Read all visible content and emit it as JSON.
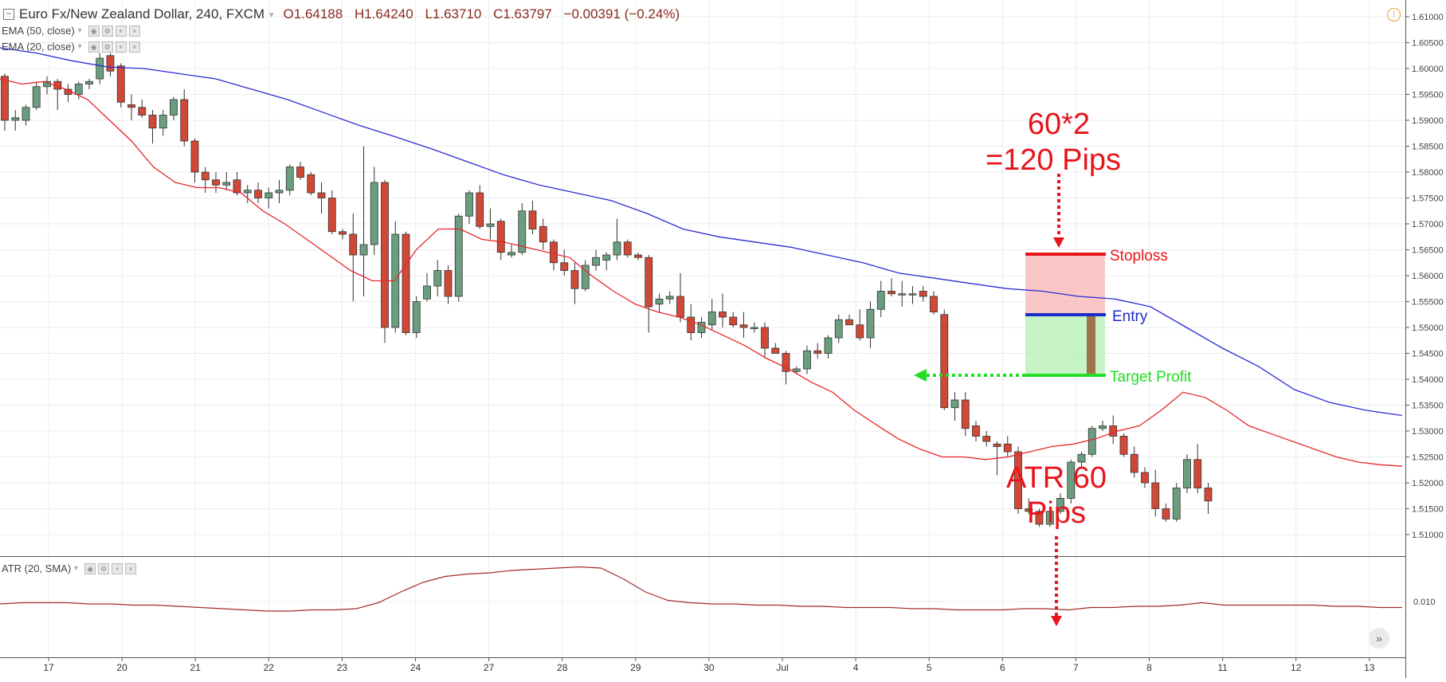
{
  "header": {
    "symbol": "Euro Fx/New Zealand Dollar, 240, FXCM",
    "open": "O1.64188",
    "high": "H1.64240",
    "low": "L1.63710",
    "close": "C1.63797",
    "change": "−0.00391 (−0.24%)"
  },
  "indicators": {
    "ema50": "EMA (50, close)",
    "ema20": "EMA (20, close)",
    "atr": "ATR (20, SMA)"
  },
  "icons": {
    "warning": "warning-icon",
    "scroll": "scroll-right-icon",
    "collapse": "collapse-icon"
  },
  "colors": {
    "bull": "#6a9e7f",
    "bear": "#d14836",
    "ema50": "#2b2bd6",
    "ema20": "#e8262b",
    "atr": "#a52a2a",
    "annotation_red": "#e8141b",
    "entry_blue": "#1c2ccc",
    "target_green": "#22dd22"
  },
  "chart_data": {
    "type": "candlestick",
    "price_axis": {
      "ticks": [
        1.61,
        1.605,
        1.6,
        1.595,
        1.59,
        1.585,
        1.58,
        1.575,
        1.57,
        1.565,
        1.56,
        1.555,
        1.55,
        1.545,
        1.54,
        1.535,
        1.53,
        1.525,
        1.52,
        1.515,
        1.51
      ],
      "tick_labels": [
        "1.61000",
        "1.60500",
        "1.60000",
        "1.59500",
        "1.59000",
        "1.58500",
        "1.58000",
        "1.57500",
        "1.57000",
        "1.56500",
        "1.56000",
        "1.55500",
        "1.55000",
        "1.54500",
        "1.54000",
        "1.53500",
        "1.53000",
        "1.52500",
        "1.52000",
        "1.51500",
        "1.51000"
      ]
    },
    "atr_axis": {
      "tick": 0.01,
      "tick_label": "0.010"
    },
    "x_axis_labels": [
      "17",
      "20",
      "21",
      "22",
      "23",
      "24",
      "27",
      "28",
      "29",
      "30",
      "Jul",
      "4",
      "5",
      "6",
      "7",
      "8",
      "11",
      "12",
      "13"
    ],
    "candles": [
      [
        1.5985,
        1.599,
        1.588,
        1.59
      ],
      [
        1.59,
        1.592,
        1.588,
        1.5905
      ],
      [
        1.59,
        1.593,
        1.589,
        1.5925
      ],
      [
        1.5925,
        1.5975,
        1.592,
        1.5965
      ],
      [
        1.5965,
        1.5985,
        1.595,
        1.5975
      ],
      [
        1.5975,
        1.598,
        1.592,
        1.596
      ],
      [
        1.596,
        1.597,
        1.5935,
        1.595
      ],
      [
        1.595,
        1.5975,
        1.594,
        1.597
      ],
      [
        1.597,
        1.598,
        1.596,
        1.5975
      ],
      [
        1.598,
        1.603,
        1.597,
        1.602
      ],
      [
        1.6025,
        1.603,
        1.5985,
        1.5995
      ],
      [
        1.6005,
        1.601,
        1.5925,
        1.5935
      ],
      [
        1.593,
        1.595,
        1.59,
        1.5925
      ],
      [
        1.5925,
        1.594,
        1.5905,
        1.591
      ],
      [
        1.591,
        1.592,
        1.5855,
        1.5885
      ],
      [
        1.5885,
        1.592,
        1.587,
        1.591
      ],
      [
        1.591,
        1.5945,
        1.59,
        1.594
      ],
      [
        1.594,
        1.596,
        1.585,
        1.586
      ],
      [
        1.586,
        1.5865,
        1.578,
        1.58
      ],
      [
        1.58,
        1.581,
        1.576,
        1.5785
      ],
      [
        1.5785,
        1.58,
        1.576,
        1.5775
      ],
      [
        1.5775,
        1.58,
        1.5765,
        1.578
      ],
      [
        1.5785,
        1.58,
        1.5755,
        1.576
      ],
      [
        1.576,
        1.5775,
        1.574,
        1.5765
      ],
      [
        1.5765,
        1.578,
        1.574,
        1.575
      ],
      [
        1.575,
        1.577,
        1.573,
        1.576
      ],
      [
        1.576,
        1.5785,
        1.574,
        1.5765
      ],
      [
        1.5765,
        1.5815,
        1.5755,
        1.581
      ],
      [
        1.581,
        1.582,
        1.5785,
        1.579
      ],
      [
        1.5795,
        1.58,
        1.5755,
        1.576
      ],
      [
        1.576,
        1.578,
        1.572,
        1.575
      ],
      [
        1.575,
        1.5765,
        1.568,
        1.5685
      ],
      [
        1.5685,
        1.569,
        1.567,
        1.568
      ],
      [
        1.568,
        1.572,
        1.555,
        1.564
      ],
      [
        1.564,
        1.585,
        1.556,
        1.566
      ],
      [
        1.566,
        1.581,
        1.564,
        1.578
      ],
      [
        1.578,
        1.5785,
        1.547,
        1.55
      ],
      [
        1.55,
        1.5705,
        1.549,
        1.568
      ],
      [
        1.568,
        1.5685,
        1.5485,
        1.549
      ],
      [
        1.549,
        1.556,
        1.548,
        1.555
      ],
      [
        1.5555,
        1.5605,
        1.555,
        1.558
      ],
      [
        1.558,
        1.563,
        1.556,
        1.561
      ],
      [
        1.561,
        1.562,
        1.5545,
        1.556
      ],
      [
        1.556,
        1.572,
        1.555,
        1.5715
      ],
      [
        1.5715,
        1.5765,
        1.57,
        1.576
      ],
      [
        1.576,
        1.5775,
        1.569,
        1.5695
      ],
      [
        1.5695,
        1.573,
        1.567,
        1.57
      ],
      [
        1.5705,
        1.571,
        1.563,
        1.5645
      ],
      [
        1.564,
        1.566,
        1.5635,
        1.5645
      ],
      [
        1.5645,
        1.574,
        1.564,
        1.5725
      ],
      [
        1.5725,
        1.5745,
        1.568,
        1.569
      ],
      [
        1.5695,
        1.571,
        1.565,
        1.5665
      ],
      [
        1.5665,
        1.567,
        1.561,
        1.5625
      ],
      [
        1.5625,
        1.565,
        1.56,
        1.561
      ],
      [
        1.561,
        1.5625,
        1.5545,
        1.5575
      ],
      [
        1.5575,
        1.563,
        1.557,
        1.562
      ],
      [
        1.562,
        1.565,
        1.561,
        1.5635
      ],
      [
        1.563,
        1.5645,
        1.561,
        1.564
      ],
      [
        1.564,
        1.571,
        1.563,
        1.5665
      ],
      [
        1.5665,
        1.567,
        1.5635,
        1.564
      ],
      [
        1.564,
        1.5645,
        1.563,
        1.5635
      ],
      [
        1.5635,
        1.564,
        1.549,
        1.554
      ],
      [
        1.5545,
        1.5565,
        1.553,
        1.5555
      ],
      [
        1.5555,
        1.557,
        1.5545,
        1.556
      ],
      [
        1.556,
        1.5605,
        1.551,
        1.552
      ],
      [
        1.552,
        1.5545,
        1.5475,
        1.549
      ],
      [
        1.549,
        1.552,
        1.548,
        1.551
      ],
      [
        1.5505,
        1.5555,
        1.5495,
        1.553
      ],
      [
        1.553,
        1.5565,
        1.55,
        1.552
      ],
      [
        1.552,
        1.553,
        1.55,
        1.5505
      ],
      [
        1.5505,
        1.553,
        1.548,
        1.55
      ],
      [
        1.55,
        1.551,
        1.549,
        1.55
      ],
      [
        1.55,
        1.551,
        1.544,
        1.546
      ],
      [
        1.546,
        1.547,
        1.545,
        1.545
      ],
      [
        1.545,
        1.5455,
        1.539,
        1.5415
      ],
      [
        1.5415,
        1.5425,
        1.541,
        1.542
      ],
      [
        1.542,
        1.5465,
        1.541,
        1.5455
      ],
      [
        1.5455,
        1.547,
        1.544,
        1.545
      ],
      [
        1.545,
        1.5485,
        1.544,
        1.548
      ],
      [
        1.548,
        1.5525,
        1.547,
        1.5515
      ],
      [
        1.5515,
        1.5525,
        1.5505,
        1.5505
      ],
      [
        1.5505,
        1.5535,
        1.5475,
        1.548
      ],
      [
        1.548,
        1.555,
        1.546,
        1.5535
      ],
      [
        1.5535,
        1.559,
        1.552,
        1.557
      ],
      [
        1.557,
        1.5595,
        1.556,
        1.5565
      ],
      [
        1.5565,
        1.559,
        1.554,
        1.5565
      ],
      [
        1.5565,
        1.558,
        1.5545,
        1.5565
      ],
      [
        1.557,
        1.558,
        1.555,
        1.556
      ],
      [
        1.556,
        1.557,
        1.5525,
        1.553
      ],
      [
        1.5525,
        1.5535,
        1.534,
        1.5345
      ],
      [
        1.5345,
        1.5375,
        1.532,
        1.536
      ],
      [
        1.536,
        1.5375,
        1.529,
        1.5305
      ],
      [
        1.531,
        1.532,
        1.528,
        1.529
      ],
      [
        1.529,
        1.53,
        1.527,
        1.528
      ],
      [
        1.5275,
        1.528,
        1.5215,
        1.527
      ],
      [
        1.5275,
        1.529,
        1.525,
        1.526
      ],
      [
        1.526,
        1.527,
        1.514,
        1.515
      ],
      [
        1.515,
        1.517,
        1.514,
        1.5145
      ],
      [
        1.5145,
        1.515,
        1.5115,
        1.512
      ],
      [
        1.512,
        1.515,
        1.5115,
        1.5145
      ],
      [
        1.5145,
        1.518,
        1.514,
        1.517
      ],
      [
        1.517,
        1.5245,
        1.516,
        1.524
      ],
      [
        1.524,
        1.526,
        1.523,
        1.5255
      ],
      [
        1.5255,
        1.531,
        1.525,
        1.5305
      ],
      [
        1.5305,
        1.532,
        1.53,
        1.531
      ],
      [
        1.531,
        1.533,
        1.5275,
        1.529
      ],
      [
        1.529,
        1.5295,
        1.525,
        1.5255
      ],
      [
        1.5255,
        1.527,
        1.521,
        1.522
      ],
      [
        1.522,
        1.523,
        1.519,
        1.52
      ],
      [
        1.52,
        1.5225,
        1.5135,
        1.515
      ],
      [
        1.515,
        1.516,
        1.5125,
        1.513
      ],
      [
        1.513,
        1.52,
        1.5125,
        1.519
      ],
      [
        1.519,
        1.5255,
        1.518,
        1.5245
      ],
      [
        1.5245,
        1.5275,
        1.518,
        1.519
      ],
      [
        1.519,
        1.52,
        1.514,
        1.5165
      ]
    ],
    "series": [
      {
        "values": [
          1.604,
          1.603,
          1.6015,
          1.6003,
          1.6,
          1.599,
          1.598,
          1.596,
          1.594,
          1.5915,
          1.589,
          1.5868,
          1.5845,
          1.582,
          1.5795,
          1.5775,
          1.576,
          1.5745,
          1.572,
          1.569,
          1.5675,
          1.5665,
          1.5655,
          1.564,
          1.5625,
          1.5605,
          1.5595,
          1.5585,
          1.5575,
          1.557,
          1.556,
          1.5555,
          1.554,
          1.55,
          1.546,
          1.5425,
          1.538,
          1.5355,
          1.534,
          1.533
        ]
      },
      {
        "values": [
          1.598,
          1.597,
          1.5975,
          1.596,
          1.594,
          1.59,
          1.586,
          1.581,
          1.578,
          1.577,
          1.577,
          1.576,
          1.5725,
          1.57,
          1.567,
          1.564,
          1.561,
          1.559,
          1.559,
          1.565,
          1.569,
          1.569,
          1.567,
          1.5665,
          1.5655,
          1.5645,
          1.5635,
          1.56,
          1.557,
          1.5545,
          1.553,
          1.552,
          1.5505,
          1.5485,
          1.5465,
          1.544,
          1.542,
          1.5395,
          1.5375,
          1.534,
          1.5312,
          1.5285,
          1.5265,
          1.525,
          1.525,
          1.5245,
          1.525,
          1.526,
          1.527,
          1.5275,
          1.5285,
          1.53,
          1.531,
          1.534,
          1.5375,
          1.5365,
          1.534,
          1.531,
          1.5295,
          1.528,
          1.5265,
          1.525,
          1.524,
          1.5235,
          1.5232
        ]
      },
      {
        "values": [
          0.0098,
          0.0099,
          0.0099,
          0.0099,
          0.0098,
          0.0098,
          0.0097,
          0.0097,
          0.0096,
          0.0095,
          0.0094,
          0.0093,
          0.0092,
          0.0092,
          0.0093,
          0.0093,
          0.0094,
          0.0099,
          0.0108,
          0.0116,
          0.0121,
          0.0123,
          0.0124,
          0.0126,
          0.0127,
          0.0128,
          0.0129,
          0.0128,
          0.0119,
          0.0108,
          0.0101,
          0.0099,
          0.0098,
          0.0098,
          0.0097,
          0.0097,
          0.0096,
          0.0096,
          0.0095,
          0.0095,
          0.0095,
          0.0094,
          0.0094,
          0.0093,
          0.0093,
          0.0093,
          0.0094,
          0.0094,
          0.0093,
          0.0095,
          0.0095,
          0.0096,
          0.0096,
          0.0097,
          0.0099,
          0.0097,
          0.0097,
          0.0097,
          0.0097,
          0.0097,
          0.0096,
          0.0096,
          0.0095,
          0.0095
        ]
      }
    ],
    "annotations": {
      "stop_text": [
        "60*2",
        "=120 Pips"
      ],
      "atr_text": [
        "ATR 60",
        "Pips"
      ],
      "stoploss_label": "Stoploss",
      "entry_label": "Entry",
      "target_label": "Target Profit",
      "stoploss_price": 1.564,
      "entry_price": 1.5522,
      "target_price": 1.5405
    }
  }
}
